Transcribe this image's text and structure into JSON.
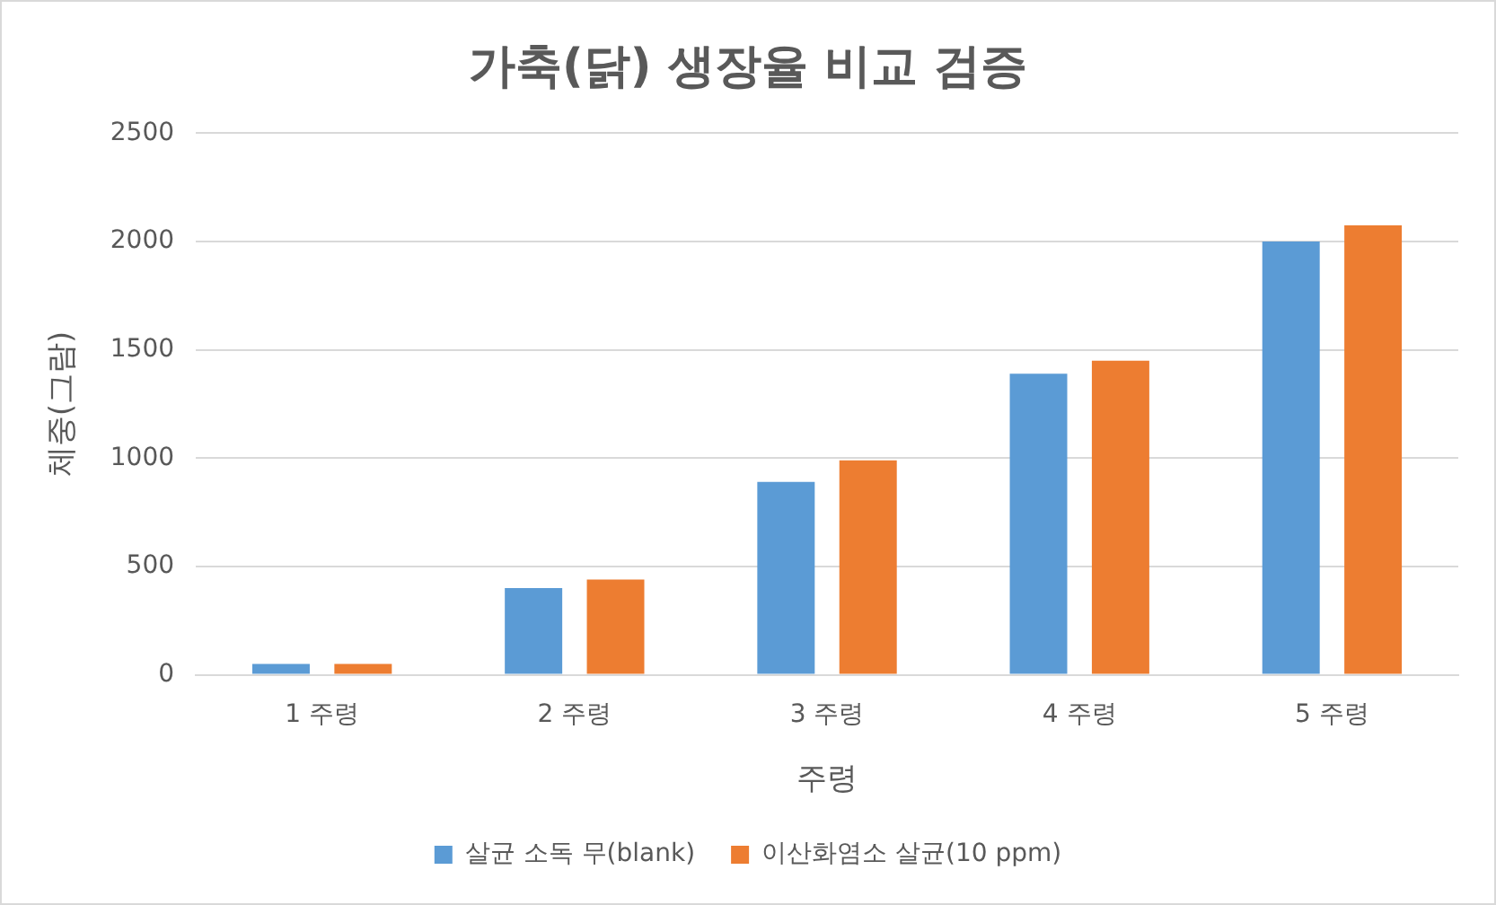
{
  "chart_data": {
    "type": "bar",
    "title": "가축(닭) 생장율 비교 검증",
    "xlabel": "주령",
    "ylabel": "체중(그람)",
    "categories": [
      "1 주령",
      "2 주령",
      "3 주령",
      "4 주령",
      "5 주령"
    ],
    "series": [
      {
        "name": "살균 소독 무(blank)",
        "color": "#5b9bd5",
        "values": [
          50,
          400,
          890,
          1390,
          2000
        ]
      },
      {
        "name": "이산화염소 살균(10 ppm)",
        "color": "#ed7d31",
        "values": [
          50,
          440,
          990,
          1450,
          2075
        ]
      }
    ],
    "ylim": [
      0,
      2500
    ],
    "yticks": [
      0,
      500,
      1000,
      1500,
      2000,
      2500
    ],
    "grid": "y",
    "legend": "bottom"
  }
}
